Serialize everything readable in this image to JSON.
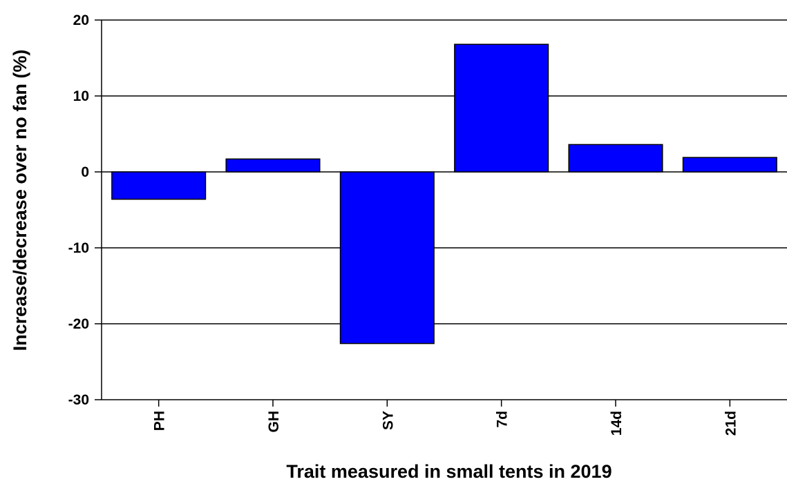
{
  "chart_data": {
    "type": "bar",
    "x_label": "Trait measured in small tents in 2019",
    "y_label": "Increase/decrease over no fan (%)",
    "categories": [
      "PH",
      "GH",
      "SY",
      "7d",
      "14d",
      "21d"
    ],
    "values": [
      -3.6,
      1.7,
      -22.6,
      16.8,
      3.6,
      1.9
    ],
    "color": "#0000ff",
    "ylim": [
      -30,
      20
    ],
    "yticks": [
      -30,
      -20,
      -10,
      0,
      10,
      20
    ],
    "grid": true
  }
}
